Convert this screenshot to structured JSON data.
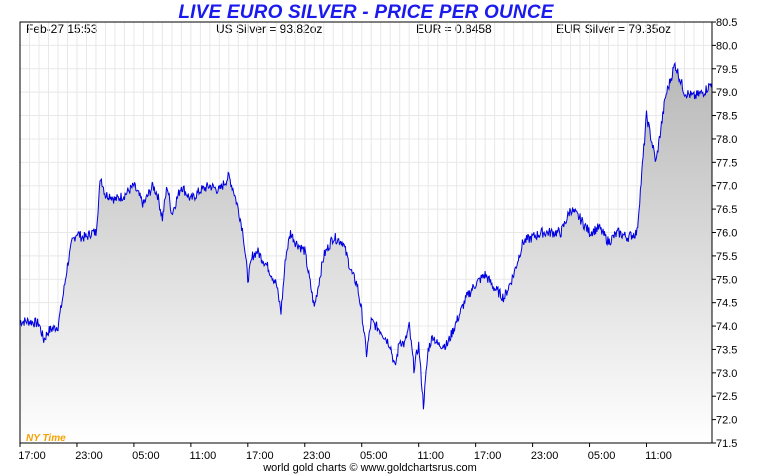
{
  "header": {
    "title": "LIVE EURO SILVER - PRICE PER OUNCE",
    "date_time": "Feb-27  15:53",
    "us_silver": "US Silver = 93.82oz",
    "eur_rate": "EUR = 0.8458",
    "eur_silver": "EUR Silver = 79.35oz"
  },
  "footer": {
    "credit": "world gold charts © www.goldchartsrus.com"
  },
  "timezone_label": "NY Time",
  "colors": {
    "line": "#0000e0",
    "fill_top": "#c4c4c4",
    "fill_bottom": "#ffffff",
    "title": "#1a1aee",
    "timezone": "#f5a000",
    "grid": "#e8e8e8"
  },
  "chart_data": {
    "type": "area",
    "title": "LIVE EURO SILVER - PRICE PER OUNCE",
    "xlabel": "",
    "ylabel": "",
    "ylim": [
      71.5,
      80.5
    ],
    "yticks": [
      71.5,
      72.0,
      72.5,
      73.0,
      73.5,
      74.0,
      74.5,
      75.0,
      75.5,
      76.0,
      76.5,
      77.0,
      77.5,
      78.0,
      78.5,
      79.0,
      79.5,
      80.0,
      80.5
    ],
    "x_tick_labels": [
      "17:00",
      "23:00",
      "05:00",
      "11:00",
      "17:00",
      "23:00",
      "05:00",
      "11:00",
      "17:00",
      "23:00",
      "05:00",
      "11:00"
    ],
    "x_tick_hours": [
      0,
      6,
      12,
      18,
      24,
      30,
      36,
      42,
      48,
      54,
      60,
      66
    ],
    "xlim_hours": [
      0,
      72.9
    ],
    "grid": true,
    "series": [
      {
        "x_hours": [
          0.0,
          1.0,
          2.0,
          2.5,
          3.0,
          4.0,
          4.5,
          5.0,
          5.5,
          6.0,
          6.5,
          7.0,
          7.5,
          8.0,
          8.5,
          9.0,
          9.5,
          10.0,
          11.0,
          12.0,
          13.0,
          14.0,
          14.5,
          15.0,
          15.5,
          16.0,
          17.0,
          18.0,
          19.0,
          20.0,
          21.0,
          22.0,
          22.5,
          23.0,
          23.5,
          24.0,
          24.5,
          25.0,
          26.0,
          27.0,
          27.5,
          28.0,
          28.5,
          29.0,
          30.0,
          31.0,
          32.0,
          33.0,
          34.0,
          35.0,
          35.5,
          36.0,
          36.5,
          37.0,
          38.0,
          39.0,
          39.5,
          40.0,
          40.5,
          41.0,
          41.5,
          42.0,
          42.5,
          43.0,
          43.5,
          44.0,
          45.0,
          46.0,
          47.0,
          48.0,
          49.0,
          50.0,
          51.0,
          52.0,
          53.0,
          54.0,
          55.0,
          56.0,
          57.0,
          58.0,
          59.0,
          60.0,
          61.0,
          62.0,
          63.0,
          64.0,
          65.0,
          66.0,
          67.0,
          68.0,
          69.0,
          70.0,
          71.0,
          72.0,
          72.9
        ],
        "values": [
          74.1,
          74.1,
          74.05,
          73.7,
          73.9,
          74.0,
          74.6,
          75.3,
          75.8,
          76.0,
          75.9,
          75.9,
          76.0,
          76.0,
          77.2,
          76.8,
          76.8,
          76.7,
          76.8,
          77.0,
          76.6,
          77.0,
          76.8,
          76.3,
          77.0,
          76.4,
          77.0,
          76.7,
          76.9,
          77.0,
          76.9,
          77.2,
          76.9,
          76.5,
          76.0,
          75.0,
          75.5,
          75.6,
          75.3,
          74.9,
          74.3,
          75.5,
          76.0,
          75.8,
          75.6,
          74.4,
          75.5,
          75.9,
          75.8,
          75.1,
          74.9,
          74.3,
          73.4,
          74.1,
          73.9,
          73.6,
          73.1,
          73.7,
          73.6,
          74.0,
          73.1,
          73.6,
          72.3,
          73.5,
          73.8,
          73.6,
          73.6,
          74.1,
          74.6,
          74.9,
          75.1,
          74.8,
          74.6,
          75.1,
          75.8,
          75.9,
          76.0,
          76.0,
          76.0,
          76.5,
          76.3,
          76.0,
          76.1,
          75.8,
          76.0,
          75.9,
          76.0,
          78.5,
          77.5,
          78.9,
          79.6,
          79.0,
          78.9,
          79.0,
          79.2
        ]
      }
    ]
  }
}
